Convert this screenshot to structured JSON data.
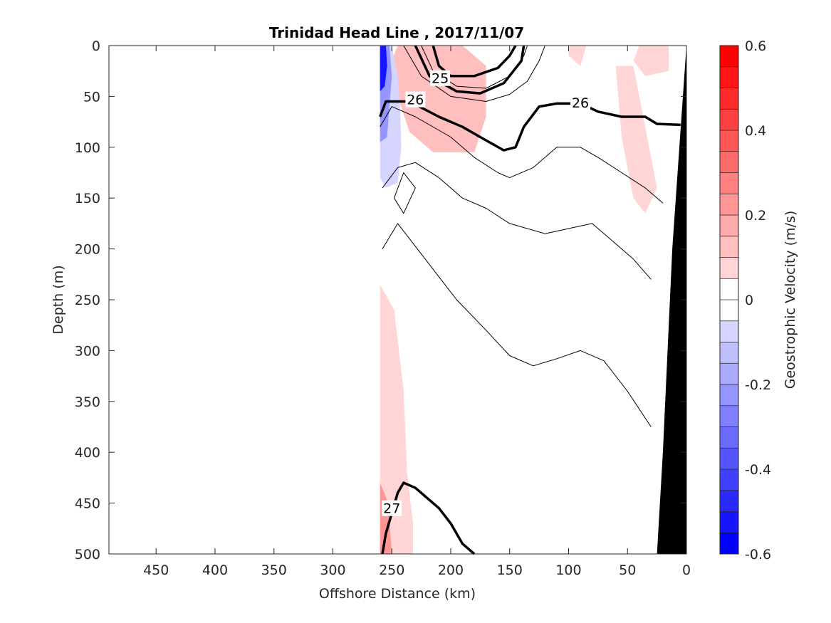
{
  "chart_data": {
    "type": "heatmap",
    "title": "Trinidad Head Line , 2017/11/07",
    "xlabel": "Offshore Distance (km)",
    "ylabel": "Depth (m)",
    "colorbar_label": "Geostrophic Velocity (m/s)",
    "x_direction": "reversed",
    "y_direction": "reversed",
    "xlim": [
      490,
      0
    ],
    "ylim": [
      0,
      500
    ],
    "xticks": [
      450,
      400,
      350,
      300,
      250,
      200,
      150,
      100,
      50,
      0
    ],
    "yticks": [
      0,
      50,
      100,
      150,
      200,
      250,
      300,
      350,
      400,
      450,
      500
    ],
    "colorbar": {
      "clim": [
        -0.6,
        0.6
      ],
      "levels": 24,
      "ticks": [
        0.6,
        0.4,
        0.2,
        0,
        -0.2,
        -0.4,
        -0.6
      ],
      "tick_labels": [
        "0.6",
        "0.4",
        "0.2",
        "0",
        "-0.2",
        "-0.4",
        "-0.6"
      ],
      "positive_color": "#ff0000",
      "negative_color": "#0000ff"
    },
    "velocity_patches": [
      {
        "v": 0.18,
        "pts": [
          [
            235,
            0
          ],
          [
            200,
            0
          ],
          [
            185,
            15
          ],
          [
            180,
            40
          ],
          [
            175,
            70
          ],
          [
            180,
            95
          ],
          [
            200,
            100
          ],
          [
            220,
            80
          ],
          [
            240,
            40
          ],
          [
            242,
            10
          ]
        ]
      },
      {
        "v": 0.1,
        "pts": [
          [
            245,
            0
          ],
          [
            190,
            0
          ],
          [
            170,
            20
          ],
          [
            170,
            70
          ],
          [
            180,
            105
          ],
          [
            215,
            105
          ],
          [
            235,
            85
          ],
          [
            245,
            50
          ],
          [
            252,
            20
          ]
        ]
      },
      {
        "v": 0.05,
        "pts": [
          [
            40,
            0
          ],
          [
            15,
            0
          ],
          [
            15,
            25
          ],
          [
            35,
            30
          ],
          [
            45,
            15
          ]
        ]
      },
      {
        "v": 0.05,
        "pts": [
          [
            60,
            20
          ],
          [
            45,
            20
          ],
          [
            35,
            80
          ],
          [
            25,
            140
          ],
          [
            35,
            165
          ],
          [
            45,
            150
          ],
          [
            55,
            90
          ]
        ]
      },
      {
        "v": 0.05,
        "pts": [
          [
            100,
            0
          ],
          [
            85,
            0
          ],
          [
            90,
            20
          ],
          [
            100,
            10
          ]
        ]
      },
      {
        "v": 0.08,
        "pts": [
          [
            260,
            235
          ],
          [
            248,
            260
          ],
          [
            240,
            340
          ],
          [
            237,
            420
          ],
          [
            232,
            470
          ],
          [
            232,
            500
          ],
          [
            260,
            500
          ],
          [
            260,
            275
          ]
        ]
      },
      {
        "v": 0.2,
        "pts": [
          [
            260,
            430
          ],
          [
            253,
            450
          ],
          [
            250,
            500
          ],
          [
            260,
            500
          ]
        ]
      },
      {
        "v": -0.05,
        "pts": [
          [
            145,
            0
          ],
          [
            120,
            0
          ],
          [
            113,
            20
          ],
          [
            115,
            50
          ],
          [
            125,
            70
          ],
          [
            135,
            65
          ],
          [
            140,
            40
          ]
        ]
      },
      {
        "v": -0.05,
        "pts": [
          [
            225,
            355
          ],
          [
            212,
            380
          ],
          [
            200,
            420
          ],
          [
            188,
            470
          ],
          [
            180,
            500
          ],
          [
            230,
            500
          ],
          [
            228,
            440
          ],
          [
            226,
            380
          ]
        ]
      },
      {
        "v": -0.05,
        "pts": [
          [
            35,
            345
          ],
          [
            42,
            360
          ],
          [
            50,
            400
          ],
          [
            55,
            450
          ],
          [
            57,
            500
          ],
          [
            25,
            500
          ],
          [
            25,
            450
          ],
          [
            28,
            380
          ]
        ]
      },
      {
        "v": -0.08,
        "pts": [
          [
            260,
            0
          ],
          [
            250,
            0
          ],
          [
            245,
            30
          ],
          [
            243,
            60
          ],
          [
            242,
            100
          ],
          [
            245,
            135
          ],
          [
            255,
            140
          ],
          [
            260,
            130
          ]
        ]
      },
      {
        "v": -0.25,
        "pts": [
          [
            260,
            0
          ],
          [
            252,
            0
          ],
          [
            250,
            30
          ],
          [
            252,
            60
          ],
          [
            254,
            90
          ],
          [
            260,
            95
          ]
        ]
      },
      {
        "v": -0.5,
        "pts": [
          [
            260,
            0
          ],
          [
            255,
            0
          ],
          [
            254,
            20
          ],
          [
            256,
            40
          ],
          [
            260,
            45
          ]
        ]
      }
    ],
    "isopycnals": [
      {
        "label": "25",
        "bold": true,
        "pts": [
          [
            215,
            0
          ],
          [
            210,
            20
          ],
          [
            200,
            30
          ],
          [
            180,
            30
          ],
          [
            160,
            22
          ],
          [
            150,
            10
          ],
          [
            145,
            0
          ]
        ],
        "label_at": [
          209,
          32
        ]
      },
      {
        "label": "",
        "bold": false,
        "pts": [
          [
            225,
            0
          ],
          [
            215,
            25
          ],
          [
            195,
            40
          ],
          [
            170,
            42
          ],
          [
            150,
            30
          ],
          [
            138,
            10
          ],
          [
            135,
            0
          ]
        ]
      },
      {
        "label": "",
        "bold": true,
        "pts": [
          [
            230,
            0
          ],
          [
            218,
            30
          ],
          [
            195,
            45
          ],
          [
            175,
            47
          ],
          [
            155,
            37
          ],
          [
            140,
            15
          ],
          [
            138,
            0
          ]
        ]
      },
      {
        "label": "",
        "bold": false,
        "pts": [
          [
            240,
            0
          ],
          [
            225,
            30
          ],
          [
            200,
            50
          ],
          [
            170,
            55
          ],
          [
            150,
            48
          ],
          [
            135,
            35
          ],
          [
            125,
            15
          ],
          [
            120,
            0
          ]
        ]
      },
      {
        "label": "26",
        "bold": true,
        "pts": [
          [
            260,
            70
          ],
          [
            255,
            55
          ],
          [
            235,
            55
          ],
          [
            210,
            70
          ],
          [
            190,
            80
          ],
          [
            175,
            90
          ],
          [
            155,
            103
          ],
          [
            145,
            100
          ],
          [
            138,
            80
          ],
          [
            125,
            60
          ],
          [
            110,
            57
          ],
          [
            90,
            57
          ],
          [
            75,
            65
          ],
          [
            55,
            70
          ],
          [
            35,
            70
          ],
          [
            25,
            77
          ],
          [
            5,
            78
          ]
        ],
        "label_at": [
          230,
          53
        ]
      },
      {
        "label": "",
        "bold": false,
        "pts": [
          [
            260,
            80
          ],
          [
            250,
            60
          ],
          [
            230,
            70
          ],
          [
            200,
            90
          ],
          [
            180,
            110
          ],
          [
            160,
            125
          ],
          [
            150,
            130
          ],
          [
            130,
            120
          ],
          [
            110,
            100
          ],
          [
            90,
            100
          ],
          [
            75,
            110
          ],
          [
            55,
            125
          ],
          [
            35,
            140
          ],
          [
            20,
            155
          ]
        ]
      },
      {
        "label": "",
        "bold": false,
        "pts": [
          [
            258,
            140
          ],
          [
            245,
            120
          ],
          [
            230,
            115
          ],
          [
            210,
            130
          ],
          [
            190,
            150
          ],
          [
            170,
            160
          ],
          [
            150,
            175
          ],
          [
            120,
            185
          ],
          [
            100,
            180
          ],
          [
            80,
            175
          ],
          [
            65,
            190
          ],
          [
            45,
            210
          ],
          [
            30,
            230
          ]
        ]
      },
      {
        "label": "",
        "bold": false,
        "pts": [
          [
            248,
            150
          ],
          [
            240,
            125
          ],
          [
            230,
            140
          ],
          [
            240,
            165
          ],
          [
            248,
            150
          ]
        ]
      },
      {
        "label": "",
        "bold": false,
        "pts": [
          [
            258,
            200
          ],
          [
            245,
            175
          ],
          [
            235,
            190
          ],
          [
            215,
            220
          ],
          [
            195,
            250
          ],
          [
            170,
            280
          ],
          [
            150,
            305
          ],
          [
            130,
            315
          ],
          [
            110,
            308
          ],
          [
            90,
            300
          ],
          [
            70,
            310
          ],
          [
            50,
            340
          ],
          [
            30,
            375
          ]
        ]
      },
      {
        "label": "27",
        "bold": true,
        "pts": [
          [
            258,
            500
          ],
          [
            255,
            480
          ],
          [
            245,
            440
          ],
          [
            240,
            430
          ],
          [
            230,
            435
          ],
          [
            210,
            455
          ],
          [
            200,
            470
          ],
          [
            190,
            490
          ],
          [
            180,
            500
          ]
        ],
        "label_at": [
          250,
          455
        ]
      }
    ],
    "isopycnal_labels": [
      "25",
      "26",
      "26",
      "27"
    ],
    "secondary_label_26": {
      "label": "26",
      "at": [
        90,
        56
      ]
    },
    "shelf_mask_pts": [
      [
        0,
        0
      ],
      [
        0,
        500
      ],
      [
        25,
        500
      ],
      [
        20,
        400
      ],
      [
        12,
        200
      ],
      [
        3,
        50
      ]
    ]
  }
}
